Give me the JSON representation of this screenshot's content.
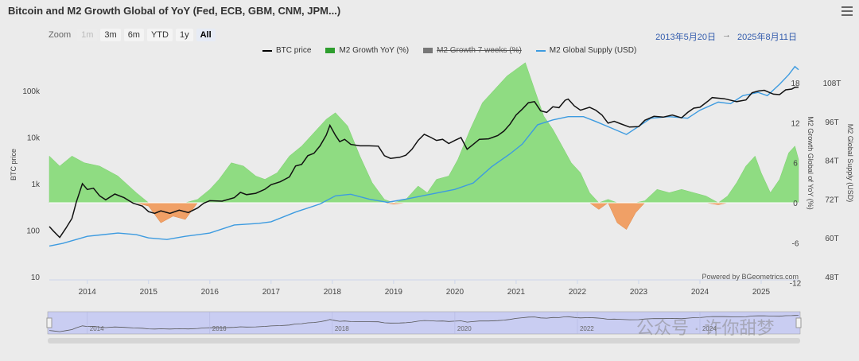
{
  "header": {
    "title": "Bitcoin and M2 Growth Global of YoY (Fed, ECB, GBM, CNM, JPM...)"
  },
  "zoom": {
    "label": "Zoom",
    "buttons": [
      {
        "label": "1m",
        "state": "disabled"
      },
      {
        "label": "3m",
        "state": "normal"
      },
      {
        "label": "6m",
        "state": "normal"
      },
      {
        "label": "YTD",
        "state": "normal"
      },
      {
        "label": "1y",
        "state": "normal"
      },
      {
        "label": "All",
        "state": "active"
      }
    ]
  },
  "range": {
    "from": "2013年5月20日",
    "arrow": "→",
    "to": "2025年8月11日"
  },
  "legend": [
    {
      "name": "BTC price",
      "color": "#000000",
      "symbol": "line",
      "hidden": false
    },
    {
      "name": "M2 Growth YoY (%)",
      "color": "#2e9e2e",
      "symbol": "box",
      "hidden": false
    },
    {
      "name": "M2 Growth 7 weeks (%)",
      "color": "#777777",
      "symbol": "box",
      "hidden": true
    },
    {
      "name": "M2 Global Supply (USD)",
      "color": "#3d9be0",
      "symbol": "line",
      "hidden": false
    }
  ],
  "credit": "Powered by BGeometrics.com",
  "watermark": "公众号 · 许你甜梦",
  "chart_data": {
    "type": "line",
    "x_ticks": [
      "2014",
      "2015",
      "2016",
      "2017",
      "2018",
      "2019",
      "2020",
      "2021",
      "2022",
      "2023",
      "2024",
      "2025"
    ],
    "x_range": [
      2013.38,
      2025.61
    ],
    "y_left": {
      "label": "BTC price",
      "scale": "log",
      "range": [
        10,
        300000
      ],
      "ticks": [
        "10",
        "100",
        "1k",
        "10k",
        "100k"
      ],
      "tick_values": [
        10,
        100,
        1000,
        10000,
        100000
      ]
    },
    "y_right_1": {
      "label": "M2 Growth Global of YoY (%)",
      "range": [
        -12,
        18
      ],
      "ticks": [
        "-12",
        "-6",
        "0",
        "6",
        "12",
        "18"
      ],
      "tick_values": [
        -12,
        -6,
        0,
        6,
        12,
        18
      ]
    },
    "y_right_2": {
      "label": "M2 Global Supply (USD)",
      "range": [
        48,
        108
      ],
      "ticks": [
        "48T",
        "60T",
        "72T",
        "84T",
        "96T",
        "108T"
      ],
      "tick_values": [
        48,
        60,
        72,
        84,
        96,
        108
      ]
    },
    "navigator_labels": [
      "2014",
      "2016",
      "2018",
      "2020",
      "2022",
      "2024"
    ],
    "navigator_tick_values": [
      2014,
      2016,
      2018,
      2020,
      2022,
      2024
    ],
    "colors": {
      "positive_fill": "#8fdc82",
      "negative_fill": "#f0a066",
      "btc": "#111111",
      "m2": "#3d9be0"
    },
    "series": [
      {
        "name": "BTC price",
        "axis": "left",
        "points": [
          [
            2013.38,
            120
          ],
          [
            2013.45,
            95
          ],
          [
            2013.55,
            70
          ],
          [
            2013.65,
            110
          ],
          [
            2013.75,
            180
          ],
          [
            2013.82,
            400
          ],
          [
            2013.92,
            1000
          ],
          [
            2014.0,
            750
          ],
          [
            2014.1,
            800
          ],
          [
            2014.2,
            550
          ],
          [
            2014.3,
            450
          ],
          [
            2014.45,
            600
          ],
          [
            2014.6,
            500
          ],
          [
            2014.75,
            380
          ],
          [
            2014.9,
            330
          ],
          [
            2015.0,
            250
          ],
          [
            2015.1,
            230
          ],
          [
            2015.2,
            260
          ],
          [
            2015.35,
            230
          ],
          [
            2015.5,
            270
          ],
          [
            2015.65,
            240
          ],
          [
            2015.8,
            300
          ],
          [
            2015.9,
            380
          ],
          [
            2016.0,
            430
          ],
          [
            2016.2,
            420
          ],
          [
            2016.4,
            500
          ],
          [
            2016.5,
            650
          ],
          [
            2016.6,
            580
          ],
          [
            2016.75,
            620
          ],
          [
            2016.9,
            760
          ],
          [
            2017.0,
            950
          ],
          [
            2017.15,
            1100
          ],
          [
            2017.3,
            1400
          ],
          [
            2017.4,
            2400
          ],
          [
            2017.5,
            2600
          ],
          [
            2017.6,
            4000
          ],
          [
            2017.7,
            4500
          ],
          [
            2017.8,
            6500
          ],
          [
            2017.9,
            11000
          ],
          [
            2017.96,
            18000
          ],
          [
            2018.05,
            11000
          ],
          [
            2018.12,
            8000
          ],
          [
            2018.2,
            9000
          ],
          [
            2018.3,
            7000
          ],
          [
            2018.45,
            6500
          ],
          [
            2018.6,
            6500
          ],
          [
            2018.75,
            6400
          ],
          [
            2018.85,
            4000
          ],
          [
            2018.95,
            3500
          ],
          [
            2019.1,
            3700
          ],
          [
            2019.2,
            4100
          ],
          [
            2019.3,
            5500
          ],
          [
            2019.4,
            8500
          ],
          [
            2019.5,
            11500
          ],
          [
            2019.6,
            10000
          ],
          [
            2019.7,
            8500
          ],
          [
            2019.8,
            9000
          ],
          [
            2019.9,
            7300
          ],
          [
            2020.0,
            8500
          ],
          [
            2020.1,
            9800
          ],
          [
            2020.2,
            5500
          ],
          [
            2020.3,
            7000
          ],
          [
            2020.4,
            9000
          ],
          [
            2020.55,
            9200
          ],
          [
            2020.7,
            10800
          ],
          [
            2020.8,
            13500
          ],
          [
            2020.9,
            19000
          ],
          [
            2021.0,
            30000
          ],
          [
            2021.1,
            40000
          ],
          [
            2021.2,
            55000
          ],
          [
            2021.3,
            58000
          ],
          [
            2021.4,
            37000
          ],
          [
            2021.5,
            34000
          ],
          [
            2021.6,
            45000
          ],
          [
            2021.7,
            43000
          ],
          [
            2021.8,
            62000
          ],
          [
            2021.85,
            66000
          ],
          [
            2021.95,
            47000
          ],
          [
            2022.05,
            38000
          ],
          [
            2022.2,
            44000
          ],
          [
            2022.3,
            38000
          ],
          [
            2022.4,
            30000
          ],
          [
            2022.5,
            20000
          ],
          [
            2022.6,
            22000
          ],
          [
            2022.7,
            19500
          ],
          [
            2022.85,
            16500
          ],
          [
            2023.0,
            16800
          ],
          [
            2023.1,
            23000
          ],
          [
            2023.25,
            28000
          ],
          [
            2023.4,
            27000
          ],
          [
            2023.55,
            30000
          ],
          [
            2023.7,
            26000
          ],
          [
            2023.8,
            34000
          ],
          [
            2023.9,
            42000
          ],
          [
            2024.0,
            44000
          ],
          [
            2024.15,
            62000
          ],
          [
            2024.2,
            71000
          ],
          [
            2024.4,
            67000
          ],
          [
            2024.6,
            58000
          ],
          [
            2024.75,
            63000
          ],
          [
            2024.85,
            90000
          ],
          [
            2024.95,
            98000
          ],
          [
            2025.05,
            102000
          ],
          [
            2025.2,
            84000
          ],
          [
            2025.3,
            82000
          ],
          [
            2025.4,
            104000
          ],
          [
            2025.5,
            108000
          ],
          [
            2025.55,
            118000
          ],
          [
            2025.61,
            119000
          ]
        ]
      },
      {
        "name": "M2 Global Supply (USD)",
        "axis": "right_2",
        "points": [
          [
            2013.38,
            57.5
          ],
          [
            2013.6,
            58.3
          ],
          [
            2014.0,
            60.5
          ],
          [
            2014.5,
            61.5
          ],
          [
            2014.8,
            61.0
          ],
          [
            2015.0,
            60.0
          ],
          [
            2015.3,
            59.5
          ],
          [
            2015.6,
            60.5
          ],
          [
            2016.0,
            61.5
          ],
          [
            2016.4,
            64.0
          ],
          [
            2016.8,
            64.5
          ],
          [
            2017.0,
            65.0
          ],
          [
            2017.4,
            68.0
          ],
          [
            2017.8,
            70.5
          ],
          [
            2018.05,
            73.0
          ],
          [
            2018.3,
            73.5
          ],
          [
            2018.6,
            72.0
          ],
          [
            2018.9,
            71.0
          ],
          [
            2019.2,
            72.0
          ],
          [
            2019.6,
            73.5
          ],
          [
            2020.0,
            75.0
          ],
          [
            2020.3,
            77.0
          ],
          [
            2020.6,
            82.0
          ],
          [
            2020.9,
            86.0
          ],
          [
            2021.1,
            89.0
          ],
          [
            2021.35,
            95.0
          ],
          [
            2021.6,
            96.5
          ],
          [
            2021.85,
            97.5
          ],
          [
            2022.1,
            97.5
          ],
          [
            2022.3,
            96.0
          ],
          [
            2022.55,
            94.0
          ],
          [
            2022.8,
            92.0
          ],
          [
            2023.0,
            94.5
          ],
          [
            2023.2,
            97.0
          ],
          [
            2023.5,
            97.5
          ],
          [
            2023.8,
            97.0
          ],
          [
            2024.0,
            99.5
          ],
          [
            2024.3,
            102.0
          ],
          [
            2024.5,
            101.5
          ],
          [
            2024.7,
            104.0
          ],
          [
            2024.95,
            105.0
          ],
          [
            2025.1,
            104.0
          ],
          [
            2025.3,
            107.5
          ],
          [
            2025.45,
            110.5
          ],
          [
            2025.55,
            113.0
          ],
          [
            2025.61,
            112.0
          ]
        ]
      },
      {
        "name": "M2 Growth YoY (%)",
        "axis": "right_1",
        "points": [
          [
            2013.38,
            7.0
          ],
          [
            2013.55,
            5.5
          ],
          [
            2013.75,
            7.0
          ],
          [
            2013.95,
            6.0
          ],
          [
            2014.2,
            5.5
          ],
          [
            2014.5,
            4.0
          ],
          [
            2014.8,
            1.5
          ],
          [
            2015.0,
            -0.5
          ],
          [
            2015.2,
            -3.0
          ],
          [
            2015.4,
            -2.0
          ],
          [
            2015.6,
            -2.5
          ],
          [
            2015.8,
            0.5
          ],
          [
            2016.0,
            2.0
          ],
          [
            2016.15,
            3.5
          ],
          [
            2016.35,
            6.0
          ],
          [
            2016.55,
            5.5
          ],
          [
            2016.75,
            4.0
          ],
          [
            2016.9,
            3.5
          ],
          [
            2017.1,
            4.5
          ],
          [
            2017.3,
            7.0
          ],
          [
            2017.5,
            8.5
          ],
          [
            2017.7,
            10.5
          ],
          [
            2017.9,
            12.5
          ],
          [
            2018.05,
            13.5
          ],
          [
            2018.25,
            11.5
          ],
          [
            2018.45,
            7.0
          ],
          [
            2018.65,
            3.0
          ],
          [
            2018.85,
            0.5
          ],
          [
            2019.0,
            -0.2
          ],
          [
            2019.2,
            0.5
          ],
          [
            2019.4,
            2.5
          ],
          [
            2019.55,
            1.5
          ],
          [
            2019.7,
            3.5
          ],
          [
            2019.9,
            4.0
          ],
          [
            2020.05,
            6.5
          ],
          [
            2020.25,
            11.0
          ],
          [
            2020.45,
            15.0
          ],
          [
            2020.65,
            17.0
          ],
          [
            2020.85,
            19.0
          ],
          [
            2021.0,
            20.0
          ],
          [
            2021.15,
            21.0
          ],
          [
            2021.3,
            17.0
          ],
          [
            2021.45,
            13.0
          ],
          [
            2021.6,
            11.0
          ],
          [
            2021.75,
            8.5
          ],
          [
            2021.9,
            6.0
          ],
          [
            2022.05,
            4.5
          ],
          [
            2022.2,
            1.5
          ],
          [
            2022.35,
            -1.0
          ],
          [
            2022.5,
            0.5
          ],
          [
            2022.65,
            -3.0
          ],
          [
            2022.8,
            -4.0
          ],
          [
            2022.95,
            -1.5
          ],
          [
            2023.1,
            0.3
          ],
          [
            2023.3,
            2.0
          ],
          [
            2023.5,
            1.5
          ],
          [
            2023.7,
            2.0
          ],
          [
            2023.9,
            1.5
          ],
          [
            2024.1,
            1.0
          ],
          [
            2024.3,
            -0.3
          ],
          [
            2024.45,
            1.0
          ],
          [
            2024.6,
            3.0
          ],
          [
            2024.75,
            5.5
          ],
          [
            2024.9,
            7.0
          ],
          [
            2025.0,
            4.5
          ],
          [
            2025.15,
            1.5
          ],
          [
            2025.3,
            3.5
          ],
          [
            2025.45,
            7.5
          ],
          [
            2025.55,
            8.5
          ],
          [
            2025.61,
            6.5
          ]
        ]
      }
    ]
  }
}
